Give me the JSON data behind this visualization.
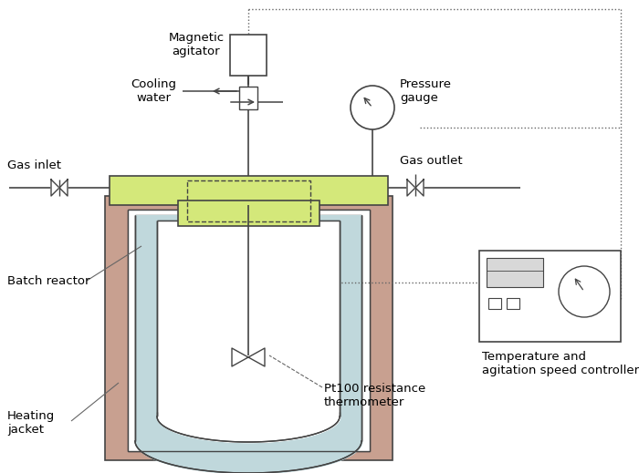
{
  "bg_color": "#ffffff",
  "lid_color": "#d4e87a",
  "jacket_color": "#c8a090",
  "inner_wall_color": "#c0d8dc",
  "line_color": "#444444",
  "dash_color": "#666666",
  "labels": {
    "magnetic_agitator": "Magnetic\nagitator",
    "cooling_water": "Cooling\nwater",
    "gas_inlet": "Gas inlet",
    "pressure_gauge": "Pressure\ngauge",
    "gas_outlet": "Gas outlet",
    "batch_reactor": "Batch reactor",
    "heating_jacket": "Heating\njacket",
    "pt100": "Pt100 resistance\nthermometer",
    "temp_controller": "Temperature and\nagitation speed controller"
  },
  "figsize": [
    7.0,
    5.19
  ],
  "dpi": 100
}
